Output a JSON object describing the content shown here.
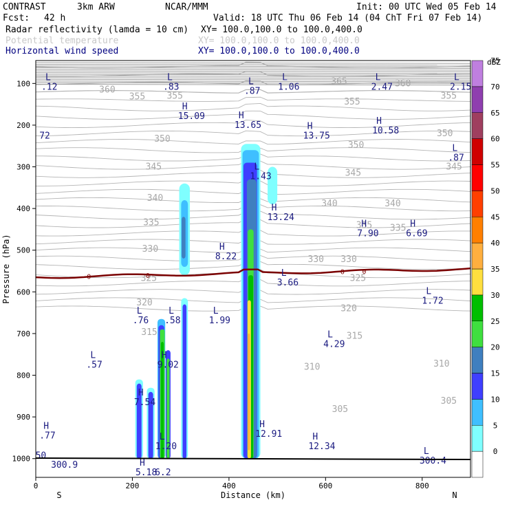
{
  "header": {
    "project": "CONTRAST",
    "model": "3km ARW",
    "center": "NCAR/MMM",
    "init": "Init: 00 UTC Wed 05 Feb 14",
    "fcst_label": "Fcst:",
    "fcst_value": "42 h",
    "valid": "Valid: 18 UTC Thu 06 Feb 14 (04 ChT Fri 07 Feb 14)",
    "fields": [
      {
        "name": "Radar reflectivity (lamda = 10 cm)",
        "xy": "XY= 100.0,100.0 to 100.0,400.0"
      },
      {
        "name": "Potential temperature",
        "xy": "XY= 100.0,100.0 to 100.0,400.0"
      },
      {
        "name": "Horizontal wind speed",
        "xy": "XY= 100.0,100.0 to 100.0,400.0"
      }
    ]
  },
  "colors": {
    "hl_text": "#1a1a80",
    "theta": "#b4b4b4",
    "freezing_line": "#7a0000",
    "ground": "#000000"
  },
  "chart_data": {
    "type": "cross-section",
    "xlabel": "Distance (km)",
    "ylabel": "Pressure (hPa)",
    "xlim": [
      0,
      900
    ],
    "ylim": [
      1045,
      45
    ],
    "x_ticks": [
      0,
      200,
      400,
      600,
      800
    ],
    "y_ticks": [
      100,
      200,
      300,
      400,
      500,
      600,
      700,
      800,
      900,
      1000
    ],
    "end_labels": {
      "left": "S",
      "right": "N"
    },
    "colorbar": {
      "unit": "dBZ",
      "levels": [
        0,
        5,
        10,
        15,
        20,
        25,
        30,
        35,
        40,
        45,
        50,
        55,
        60,
        65,
        70,
        75
      ],
      "colors": [
        "#ffffff",
        "#7fffff",
        "#3fbfff",
        "#3f3fff",
        "#3f7fbf",
        "#3fdf3f",
        "#00bf00",
        "#ffdf3f",
        "#ffaf3f",
        "#ff7f00",
        "#ff3f00",
        "#ff0000",
        "#cf0000",
        "#9f3f5f",
        "#8f3faf",
        "#bf7fdf"
      ]
    },
    "theta_labels": [
      {
        "v": "360",
        "x": 148,
        "p": 115
      },
      {
        "v": "355",
        "x": 210,
        "p": 132
      },
      {
        "v": "355",
        "x": 288,
        "p": 130
      },
      {
        "v": "365",
        "x": 628,
        "p": 95
      },
      {
        "v": "360",
        "x": 760,
        "p": 100
      },
      {
        "v": "355",
        "x": 655,
        "p": 144
      },
      {
        "v": "355",
        "x": 855,
        "p": 130
      },
      {
        "v": "350",
        "x": 262,
        "p": 233
      },
      {
        "v": "350",
        "x": 663,
        "p": 248
      },
      {
        "v": "350",
        "x": 847,
        "p": 220
      },
      {
        "v": "345",
        "x": 244,
        "p": 300
      },
      {
        "v": "345",
        "x": 657,
        "p": 315
      },
      {
        "v": "345",
        "x": 866,
        "p": 300
      },
      {
        "v": "340",
        "x": 247,
        "p": 375
      },
      {
        "v": "340",
        "x": 608,
        "p": 388
      },
      {
        "v": "340",
        "x": 739,
        "p": 388
      },
      {
        "v": "335",
        "x": 239,
        "p": 434
      },
      {
        "v": "335",
        "x": 680,
        "p": 440
      },
      {
        "v": "335",
        "x": 750,
        "p": 447
      },
      {
        "v": "330",
        "x": 237,
        "p": 497
      },
      {
        "v": "330",
        "x": 580,
        "p": 522
      },
      {
        "v": "330",
        "x": 648,
        "p": 522
      },
      {
        "v": "325",
        "x": 234,
        "p": 567
      },
      {
        "v": "325",
        "x": 667,
        "p": 567
      },
      {
        "v": "320",
        "x": 225,
        "p": 626
      },
      {
        "v": "320",
        "x": 648,
        "p": 640
      },
      {
        "v": "315",
        "x": 235,
        "p": 697
      },
      {
        "v": "315",
        "x": 660,
        "p": 706
      },
      {
        "v": "310",
        "x": 572,
        "p": 780
      },
      {
        "v": "310",
        "x": 840,
        "p": 773
      },
      {
        "v": "305",
        "x": 630,
        "p": 882
      },
      {
        "v": "305",
        "x": 855,
        "p": 862
      }
    ],
    "hl_labels": [
      {
        "t": "L",
        "v": ".12",
        "x": 20,
        "p": 115
      },
      {
        "t": "L",
        "v": ".83",
        "x": 272,
        "p": 115
      },
      {
        "t": "L",
        "v": ".87",
        "x": 440,
        "p": 125
      },
      {
        "t": "L",
        "v": "1.06",
        "x": 510,
        "p": 115
      },
      {
        "t": "L",
        "v": "2.47",
        "x": 703,
        "p": 115
      },
      {
        "t": "L",
        "v": "2.15",
        "x": 872,
        "p": 115
      },
      {
        "t": "H",
        "v": "15.09",
        "x": 303,
        "p": 185
      },
      {
        "t": "H",
        "v": "13.65",
        "x": 420,
        "p": 207
      },
      {
        "t": "H",
        "v": "13.75",
        "x": 562,
        "p": 232
      },
      {
        "t": "H",
        "v": "10.58",
        "x": 705,
        "p": 220
      },
      {
        "t": "",
        "v": "72",
        "x": 16,
        "p": 232
      },
      {
        "t": "L",
        "v": ".87",
        "x": 862,
        "p": 285
      },
      {
        "t": "L",
        "v": "1.43",
        "x": 452,
        "p": 330
      },
      {
        "t": "H",
        "v": "13.24",
        "x": 488,
        "p": 428
      },
      {
        "t": "H",
        "v": "7.90",
        "x": 674,
        "p": 467
      },
      {
        "t": "H",
        "v": "6.69",
        "x": 775,
        "p": 467
      },
      {
        "t": "H",
        "v": "8.22",
        "x": 380,
        "p": 522
      },
      {
        "t": "L",
        "v": "3.66",
        "x": 508,
        "p": 585
      },
      {
        "t": "L",
        "v": "1.72",
        "x": 808,
        "p": 628
      },
      {
        "t": "L",
        "v": ".76",
        "x": 209,
        "p": 675
      },
      {
        "t": "L",
        "v": ".58",
        "x": 275,
        "p": 675
      },
      {
        "t": "L",
        "v": "1.99",
        "x": 367,
        "p": 675
      },
      {
        "t": "L",
        "v": "4.29",
        "x": 604,
        "p": 732
      },
      {
        "t": "L",
        "v": ".57",
        "x": 113,
        "p": 782
      },
      {
        "t": "H",
        "v": "9.02",
        "x": 260,
        "p": 782
      },
      {
        "t": "H",
        "v": "7.54",
        "x": 212,
        "p": 872
      },
      {
        "t": "H",
        "v": ".77",
        "x": 16,
        "p": 952
      },
      {
        "t": "H",
        "v": "12.91",
        "x": 463,
        "p": 948
      },
      {
        "t": "H",
        "v": "12.34",
        "x": 573,
        "p": 977
      },
      {
        "t": "L",
        "v": "1.20",
        "x": 256,
        "p": 977
      },
      {
        "t": "",
        "v": "300.9",
        "x": 40,
        "p": 1022
      },
      {
        "t": "",
        "v": "50",
        "x": 8,
        "p": 1000
      },
      {
        "t": "L",
        "v": "300.4",
        "x": 803,
        "p": 1012
      },
      {
        "t": "H",
        "v": "5.18",
        "x": 215,
        "p": 1052
      },
      {
        "t": "",
        "v": "6.2",
        "x": 255,
        "p": 1052
      }
    ],
    "zero_label": "0"
  }
}
